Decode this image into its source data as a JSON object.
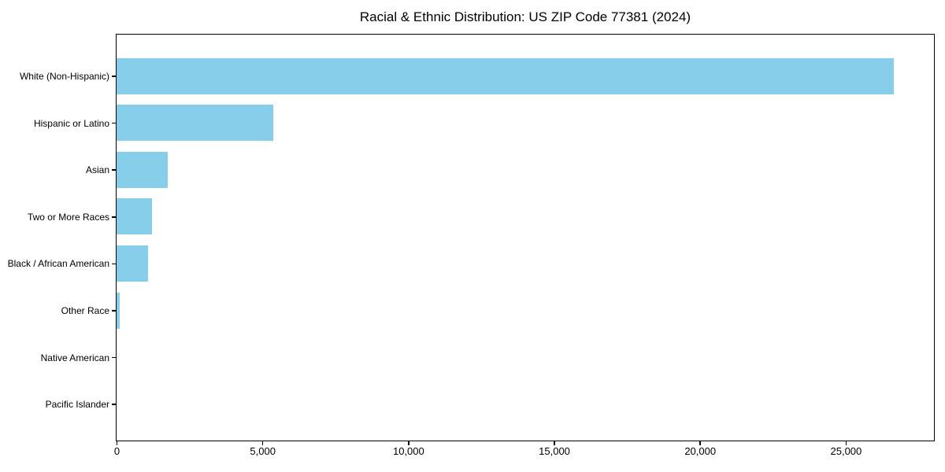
{
  "chart_data": {
    "type": "bar",
    "orientation": "horizontal",
    "title": "Racial & Ethnic Distribution: US ZIP Code 77381 (2024)",
    "categories": [
      "White (Non-Hispanic)",
      "Hispanic or Latino",
      "Asian",
      "Two or More Races",
      "Black / African American",
      "Other Race",
      "Native American",
      "Pacific Islander"
    ],
    "values": [
      26650,
      5360,
      1750,
      1220,
      1070,
      100,
      0,
      0
    ],
    "xlabel": "",
    "ylabel": "",
    "xlim": [
      0,
      28000
    ],
    "x_ticks": [
      0,
      5000,
      10000,
      15000,
      20000,
      25000
    ],
    "x_tick_labels": [
      "0",
      "5,000",
      "10,000",
      "15,000",
      "20,000",
      "25,000"
    ],
    "bar_color": "#87CEEB",
    "axis_color": "#000000",
    "background_color": "#ffffff",
    "grid": false,
    "legend_position": "none"
  }
}
